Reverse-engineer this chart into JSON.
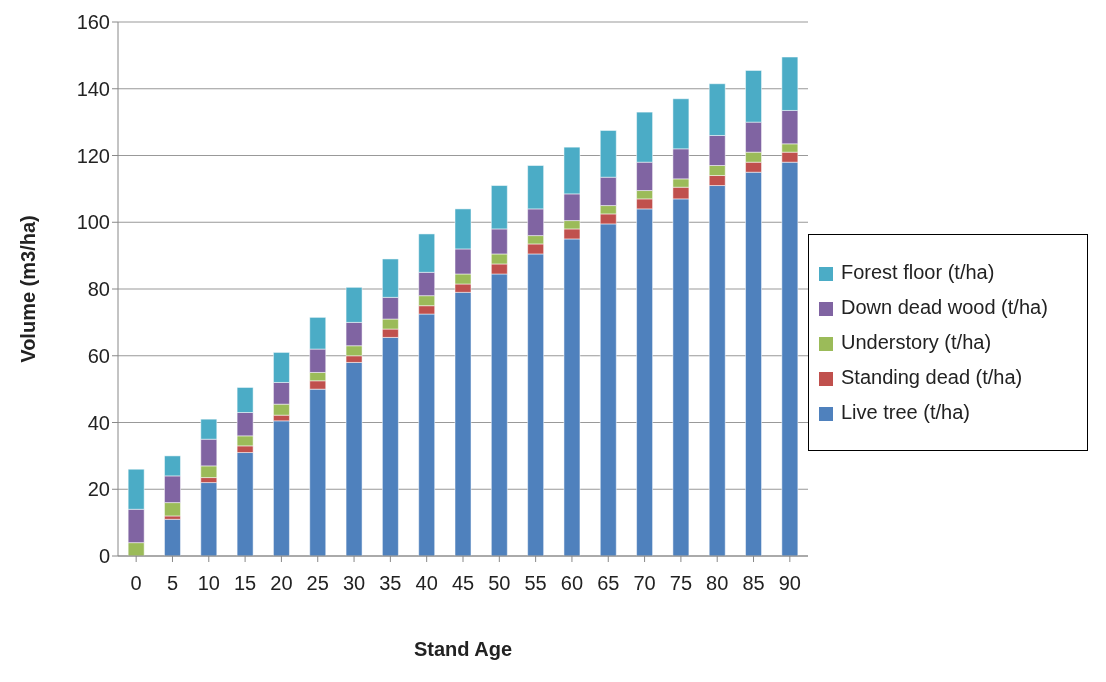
{
  "chart_data": {
    "type": "bar",
    "stacked": true,
    "xlabel": "Stand Age",
    "ylabel": "Volume (m3/ha)",
    "categories": [
      "0",
      "5",
      "10",
      "15",
      "20",
      "25",
      "30",
      "35",
      "40",
      "45",
      "50",
      "55",
      "60",
      "65",
      "70",
      "75",
      "80",
      "85",
      "90"
    ],
    "series": [
      {
        "name": "Live tree (t/ha)",
        "color": "#4f81bd",
        "values": [
          0,
          11,
          22,
          31,
          40.5,
          50,
          58,
          65.5,
          72.5,
          79,
          84.5,
          90.5,
          95,
          99.5,
          104,
          107,
          111,
          115,
          118
        ]
      },
      {
        "name": "Standing dead (t/ha)",
        "color": "#c0504d",
        "values": [
          0,
          1,
          1.5,
          2,
          1.7,
          2.5,
          2,
          2.5,
          2.5,
          2.5,
          3,
          3,
          3,
          3,
          3,
          3.5,
          3,
          3,
          3
        ]
      },
      {
        "name": "Understory (t/ha)",
        "color": "#9bbb59",
        "values": [
          4,
          4,
          3.5,
          3,
          3.3,
          2.5,
          3,
          3,
          3,
          3,
          3,
          2.5,
          2.5,
          2.5,
          2.5,
          2.5,
          3,
          3,
          2.5
        ]
      },
      {
        "name": "Down dead wood (t/ha)",
        "color": "#8064a2",
        "values": [
          10,
          8,
          8,
          7,
          6.5,
          7,
          7,
          6.5,
          7,
          7.5,
          7.5,
          8,
          8,
          8.5,
          8.5,
          9,
          9,
          9,
          10
        ]
      },
      {
        "name": "Forest floor (t/ha)",
        "color": "#4bacc6",
        "values": [
          12,
          6,
          6,
          7.5,
          9,
          9.5,
          10.5,
          11.5,
          11.5,
          12,
          13,
          13,
          14,
          14,
          15,
          15,
          15.5,
          15.5,
          16
        ]
      }
    ],
    "ylim": [
      0,
      160
    ],
    "yticks": [
      0,
      20,
      40,
      60,
      80,
      100,
      120,
      140,
      160
    ],
    "grid": "y",
    "legend": "right"
  }
}
